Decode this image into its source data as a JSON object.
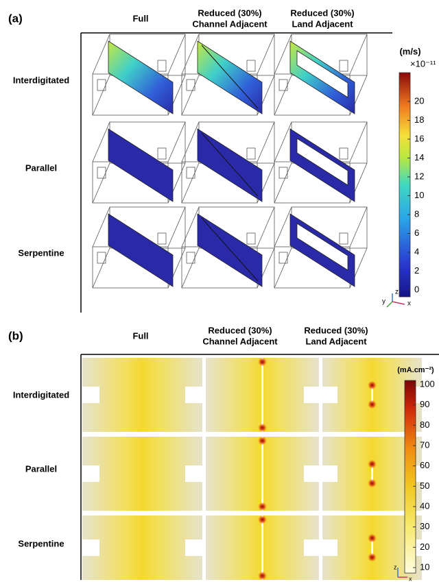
{
  "panel_a": {
    "label": "(a)",
    "columns": [
      [
        "Full"
      ],
      [
        "Reduced (30%)",
        "Channel Adjacent"
      ],
      [
        "Reduced (30%)",
        "Land Adjacent"
      ]
    ],
    "rows": [
      "Interdigitated",
      "Parallel",
      "Serpentine"
    ],
    "colorbar": {
      "unit": "(m/s)",
      "multiplier": "×10⁻¹¹",
      "ticks": [
        0,
        2,
        4,
        6,
        8,
        10,
        12,
        14,
        16,
        18,
        20
      ]
    },
    "axes": [
      "z",
      "y",
      "x"
    ]
  },
  "panel_b": {
    "label": "(b)",
    "columns": [
      [
        "Full"
      ],
      [
        "Reduced (30%)",
        "Channel Adjacent"
      ],
      [
        "Reduced (30%)",
        "Land Adjacent"
      ]
    ],
    "rows": [
      "Interdigitated",
      "Parallel",
      "Serpentine"
    ],
    "colorbar": {
      "unit": "(mA.cm⁻²)",
      "ticks": [
        10,
        20,
        30,
        40,
        50,
        60,
        70,
        80,
        90,
        100
      ]
    },
    "axes": [
      "z",
      "x"
    ]
  }
}
